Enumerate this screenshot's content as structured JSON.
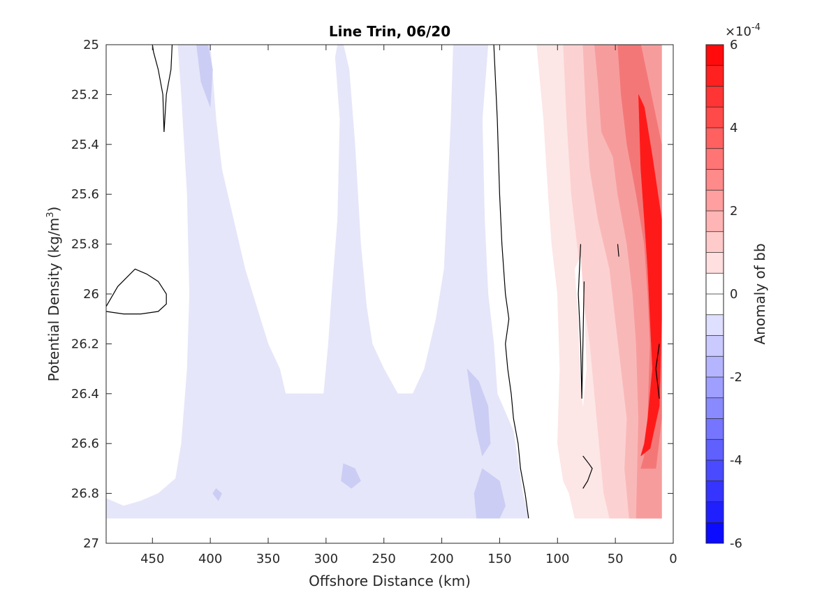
{
  "chart_data": {
    "type": "heatmap",
    "title": "Line Trin, 06/20",
    "xlabel": "Offshore Distance (km)",
    "ylabel": "Potential Density (kg/m",
    "ylabel_sup": "3",
    "ylabel_close": ")",
    "xlim": [
      490,
      0
    ],
    "ylim": [
      25,
      27
    ],
    "x_reversed": true,
    "y_reversed": true,
    "xticks": [
      450,
      400,
      350,
      300,
      250,
      200,
      150,
      100,
      50,
      0
    ],
    "yticks": [
      25,
      25.2,
      25.4,
      25.6,
      25.8,
      26,
      26.2,
      26.4,
      26.6,
      26.8,
      27
    ],
    "colorbar": {
      "label": "Anomaly of bb",
      "exponent_base": "×10",
      "exponent": "-4",
      "min": -6,
      "max": 6,
      "ticks": [
        6,
        4,
        2,
        0,
        -2,
        -4,
        -6
      ],
      "levels": 24,
      "low_color": "#0000ff",
      "mid_color": "#ffffff",
      "high_color": "#ff0000"
    },
    "fill_colors": {
      "neg1": "#e6e6fa",
      "neg2": "#cccdf4",
      "pos1": "#fde6e6",
      "pos2": "#fcd1d1",
      "pos3": "#f9b8b8",
      "pos4": "#f79c9c",
      "pos5": "#f47777",
      "pos6": "#ff1a1a"
    },
    "data_extent": {
      "y_bottom": 26.9
    },
    "regions": [
      {
        "id": "neg-band-1",
        "level": "neg1",
        "points": [
          [
            490,
            26.9
          ],
          [
            490,
            26.82
          ],
          [
            475,
            26.85
          ],
          [
            460,
            26.83
          ],
          [
            445,
            26.8
          ],
          [
            430,
            26.74
          ],
          [
            425,
            26.6
          ],
          [
            420,
            26.3
          ],
          [
            418,
            26
          ],
          [
            420,
            25.6
          ],
          [
            425,
            25.2
          ],
          [
            428,
            25
          ],
          [
            410,
            25
          ],
          [
            400,
            25
          ],
          [
            395,
            25.3
          ],
          [
            390,
            25.5
          ],
          [
            380,
            25.7
          ],
          [
            370,
            25.9
          ],
          [
            360,
            26.05
          ],
          [
            350,
            26.2
          ],
          [
            340,
            26.3
          ],
          [
            335,
            26.4
          ],
          [
            320,
            26.4
          ],
          [
            310,
            26.4
          ],
          [
            302,
            26.4
          ],
          [
            298,
            26.2
          ],
          [
            295,
            26
          ],
          [
            290,
            25.7
          ],
          [
            288,
            25.3
          ],
          [
            292,
            25.05
          ],
          [
            290,
            25
          ],
          [
            285,
            25
          ],
          [
            280,
            25.1
          ],
          [
            275,
            25.4
          ],
          [
            270,
            25.8
          ],
          [
            265,
            26.05
          ],
          [
            260,
            26.2
          ],
          [
            250,
            26.3
          ],
          [
            238,
            26.4
          ],
          [
            225,
            26.4
          ],
          [
            215,
            26.3
          ],
          [
            205,
            26.1
          ],
          [
            198,
            25.9
          ],
          [
            195,
            25.6
          ],
          [
            192,
            25.3
          ],
          [
            190,
            25
          ],
          [
            160,
            25
          ],
          [
            165,
            25.3
          ],
          [
            163,
            25.7
          ],
          [
            160,
            26
          ],
          [
            155,
            26.2
          ],
          [
            152,
            26.4
          ],
          [
            138,
            26.55
          ],
          [
            130,
            26.8
          ],
          [
            125,
            26.9
          ]
        ]
      },
      {
        "id": "neg-patch-top",
        "level": "neg2",
        "points": [
          [
            412,
            25
          ],
          [
            408,
            25.15
          ],
          [
            400,
            25.25
          ],
          [
            398,
            25.1
          ],
          [
            402,
            25
          ]
        ]
      },
      {
        "id": "neg-patch-low1",
        "level": "neg2",
        "points": [
          [
            178,
            26.3
          ],
          [
            168,
            26.35
          ],
          [
            160,
            26.45
          ],
          [
            158,
            26.6
          ],
          [
            165,
            26.65
          ],
          [
            170,
            26.55
          ],
          [
            175,
            26.4
          ]
        ]
      },
      {
        "id": "neg-patch-low2",
        "level": "neg2",
        "points": [
          [
            165,
            26.7
          ],
          [
            150,
            26.75
          ],
          [
            145,
            26.85
          ],
          [
            150,
            26.9
          ],
          [
            170,
            26.9
          ],
          [
            172,
            26.8
          ]
        ]
      },
      {
        "id": "neg-patch-low3",
        "level": "neg2",
        "points": [
          [
            285,
            26.68
          ],
          [
            275,
            26.7
          ],
          [
            270,
            26.75
          ],
          [
            278,
            26.78
          ],
          [
            287,
            26.75
          ]
        ]
      },
      {
        "id": "neg-patch-low4",
        "level": "neg2",
        "points": [
          [
            395,
            26.78
          ],
          [
            390,
            26.8
          ],
          [
            393,
            26.83
          ],
          [
            398,
            26.8
          ]
        ]
      },
      {
        "id": "neg-patch-right",
        "level": "neg2",
        "points": [
          [
            15,
            26.3
          ],
          [
            12,
            26.35
          ],
          [
            10,
            26.42
          ],
          [
            14,
            26.4
          ]
        ]
      },
      {
        "id": "pos-band-1",
        "level": "pos1",
        "points": [
          [
            118,
            25
          ],
          [
            112,
            25.3
          ],
          [
            108,
            25.6
          ],
          [
            105,
            25.8
          ],
          [
            100,
            26
          ],
          [
            98,
            26.3
          ],
          [
            100,
            26.6
          ],
          [
            95,
            26.75
          ],
          [
            90,
            26.8
          ],
          [
            85,
            26.9
          ],
          [
            10,
            26.9
          ],
          [
            10,
            25
          ],
          [
            60,
            25
          ]
        ]
      },
      {
        "id": "pos-band-2",
        "level": "pos2",
        "points": [
          [
            95,
            25
          ],
          [
            92,
            25.3
          ],
          [
            88,
            25.6
          ],
          [
            83,
            25.8
          ],
          [
            78,
            26
          ],
          [
            72,
            26.2
          ],
          [
            68,
            26.4
          ],
          [
            65,
            26.55
          ],
          [
            60,
            26.8
          ],
          [
            55,
            26.9
          ],
          [
            10,
            26.9
          ],
          [
            10,
            25
          ],
          [
            60,
            25
          ]
        ]
      },
      {
        "id": "pos-band-3",
        "level": "pos3",
        "points": [
          [
            78,
            25
          ],
          [
            75,
            25.3
          ],
          [
            72,
            25.5
          ],
          [
            65,
            25.7
          ],
          [
            55,
            25.9
          ],
          [
            50,
            26.1
          ],
          [
            45,
            26.3
          ],
          [
            40,
            26.5
          ],
          [
            42,
            26.7
          ],
          [
            38,
            26.9
          ],
          [
            10,
            26.9
          ],
          [
            10,
            25
          ],
          [
            50,
            25
          ]
        ]
      },
      {
        "id": "pos-band-4",
        "level": "pos4",
        "points": [
          [
            68,
            25
          ],
          [
            65,
            25.15
          ],
          [
            62,
            25.35
          ],
          [
            52,
            25.45
          ],
          [
            48,
            25.6
          ],
          [
            40,
            25.8
          ],
          [
            35,
            26
          ],
          [
            32,
            26.2
          ],
          [
            30,
            26.5
          ],
          [
            32,
            26.9
          ],
          [
            10,
            26.9
          ],
          [
            10,
            25
          ],
          [
            45,
            25
          ]
        ]
      },
      {
        "id": "pos-band-5",
        "level": "pos5",
        "points": [
          [
            48,
            25
          ],
          [
            45,
            25.2
          ],
          [
            40,
            25.4
          ],
          [
            32,
            25.6
          ],
          [
            25,
            25.8
          ],
          [
            22,
            26
          ],
          [
            20,
            26.2
          ],
          [
            22,
            26.5
          ],
          [
            25,
            26.65
          ],
          [
            28,
            26.7
          ],
          [
            15,
            26.7
          ],
          [
            10,
            26.5
          ],
          [
            10,
            25.4
          ],
          [
            28,
            25
          ],
          [
            40,
            25
          ]
        ]
      },
      {
        "id": "pos-band-6",
        "level": "pos6",
        "points": [
          [
            30,
            25.2
          ],
          [
            28,
            25.5
          ],
          [
            25,
            25.7
          ],
          [
            22,
            25.9
          ],
          [
            20,
            26.1
          ],
          [
            18,
            26.3
          ],
          [
            22,
            26.5
          ],
          [
            25,
            26.6
          ],
          [
            28,
            26.65
          ],
          [
            20,
            26.62
          ],
          [
            12,
            26.45
          ],
          [
            10,
            26.1
          ],
          [
            10,
            25.7
          ],
          [
            18,
            25.45
          ],
          [
            25,
            25.25
          ]
        ]
      },
      {
        "id": "white-hole-1",
        "level": "white",
        "points": [
          [
            85,
            25.9
          ],
          [
            82,
            26.1
          ],
          [
            80,
            26.35
          ],
          [
            78,
            26.45
          ],
          [
            75,
            26.3
          ],
          [
            77,
            26.05
          ],
          [
            80,
            25.85
          ]
        ]
      },
      {
        "id": "white-hole-2",
        "level": "white",
        "points": [
          [
            440,
            26.6
          ],
          [
            432,
            26.61
          ],
          [
            428,
            26.63
          ],
          [
            435,
            26.63
          ],
          [
            441,
            26.62
          ]
        ]
      }
    ],
    "zero_contours": [
      {
        "id": "contour-top-left",
        "points": [
          [
            450,
            25
          ],
          [
            449,
            25.03
          ],
          [
            445,
            25.1
          ],
          [
            441,
            25.2
          ],
          [
            440,
            25.35
          ],
          [
            438,
            25.2
          ],
          [
            434,
            25.1
          ],
          [
            433,
            25
          ]
        ]
      },
      {
        "id": "contour-left-loop",
        "points": [
          [
            490,
            26.05
          ],
          [
            480,
            25.97
          ],
          [
            465,
            25.9
          ],
          [
            455,
            25.92
          ],
          [
            445,
            25.95
          ],
          [
            438,
            26.0
          ],
          [
            438,
            26.04
          ],
          [
            445,
            26.07
          ],
          [
            460,
            26.08
          ],
          [
            475,
            26.08
          ],
          [
            490,
            26.07
          ]
        ]
      },
      {
        "id": "contour-main",
        "points": [
          [
            155,
            25
          ],
          [
            152,
            25.3
          ],
          [
            150,
            25.6
          ],
          [
            148,
            25.8
          ],
          [
            145,
            26
          ],
          [
            142,
            26.1
          ],
          [
            145,
            26.2
          ],
          [
            143,
            26.3
          ],
          [
            140,
            26.4
          ],
          [
            138,
            26.5
          ],
          [
            134,
            26.6
          ],
          [
            132,
            26.7
          ],
          [
            128,
            26.8
          ],
          [
            125,
            26.9
          ]
        ]
      },
      {
        "id": "contour-thin-spike",
        "points": [
          [
            80,
            25.8
          ],
          [
            82,
            26
          ],
          [
            80,
            26.2
          ],
          [
            79,
            26.42
          ],
          [
            78,
            26.2
          ],
          [
            77,
            25.95
          ]
        ]
      },
      {
        "id": "contour-small-loop",
        "points": [
          [
            78,
            26.65
          ],
          [
            73,
            26.68
          ],
          [
            70,
            26.7
          ],
          [
            74,
            26.75
          ],
          [
            78,
            26.78
          ]
        ]
      },
      {
        "id": "contour-tick-1",
        "points": [
          [
            48,
            25.8
          ],
          [
            47,
            25.85
          ]
        ]
      },
      {
        "id": "contour-tick-right",
        "points": [
          [
            12,
            26.2
          ],
          [
            15,
            26.3
          ],
          [
            12,
            26.42
          ]
        ]
      }
    ]
  }
}
